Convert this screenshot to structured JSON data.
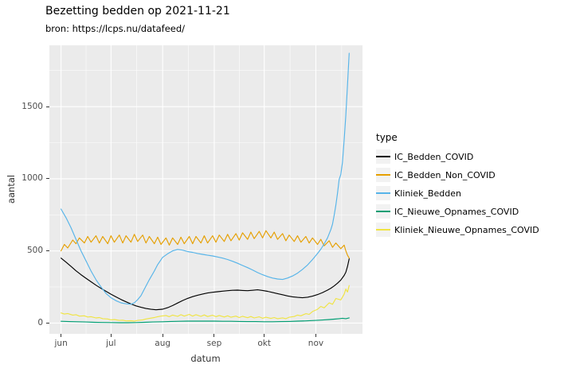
{
  "chart_data": {
    "type": "line",
    "title": "Bezetting bedden op 2021-11-21",
    "subtitle": "bron: https://lcps.nu/datafeed/",
    "xlabel": "datum",
    "ylabel": "aantal",
    "legend_title": "type",
    "legend_position": "right",
    "grid": true,
    "panel_background": "#EBEBEB",
    "grid_color": "#FFFFFF",
    "x_unit": "days-since-2021-06-01",
    "x_domain": [
      -7,
      181
    ],
    "y_domain": [
      -75,
      1925
    ],
    "x_tick_positions": [
      0,
      30,
      61,
      92,
      122,
      153
    ],
    "x_tick_labels": [
      "jun",
      "jul",
      "aug",
      "sep",
      "okt",
      "nov"
    ],
    "x_minor_breaks": [
      15,
      45.5,
      76.5,
      107,
      137.5,
      168.5
    ],
    "y_ticks": [
      0,
      500,
      1000,
      1500
    ],
    "y_tick_labels": [
      "0",
      "500",
      "1000",
      "1500"
    ],
    "y_minor_breaks": [
      250,
      750,
      1250,
      1750
    ],
    "series": [
      {
        "name": "IC_Bedden_COVID",
        "color": "#000000",
        "x": [
          0,
          3,
          6,
          9,
          12,
          15,
          18,
          21,
          24,
          27,
          30,
          33,
          36,
          39,
          42,
          45,
          48,
          51,
          54,
          57,
          61,
          64,
          67,
          70,
          73,
          76,
          79,
          82,
          85,
          88,
          91,
          94,
          97,
          100,
          103,
          106,
          109,
          112,
          115,
          118,
          121,
          124,
          127,
          130,
          133,
          136,
          139,
          142,
          145,
          148,
          151,
          154,
          157,
          160,
          162,
          164,
          166,
          168,
          170,
          171,
          172,
          173
        ],
        "values": [
          450,
          422,
          392,
          362,
          335,
          310,
          286,
          262,
          240,
          220,
          200,
          181,
          163,
          147,
          132,
          119,
          109,
          101,
          95,
          92,
          96,
          106,
          121,
          139,
          156,
          171,
          183,
          193,
          201,
          208,
          213,
          217,
          221,
          224,
          227,
          228,
          226,
          224,
          227,
          230,
          226,
          220,
          212,
          204,
          196,
          188,
          182,
          178,
          175,
          179,
          186,
          197,
          211,
          228,
          241,
          257,
          276,
          298,
          330,
          352,
          392,
          445
        ]
      },
      {
        "name": "IC_Bedden_Non_COVID",
        "color": "#E69F00",
        "x": [
          0,
          2,
          4,
          7,
          9,
          11,
          14,
          16,
          18,
          21,
          23,
          25,
          28,
          30,
          32,
          35,
          37,
          39,
          42,
          44,
          46,
          49,
          51,
          53,
          56,
          58,
          60,
          63,
          65,
          67,
          70,
          72,
          74,
          77,
          79,
          81,
          84,
          86,
          88,
          91,
          93,
          95,
          98,
          100,
          102,
          105,
          107,
          109,
          112,
          114,
          116,
          119,
          121,
          123,
          126,
          128,
          130,
          133,
          135,
          137,
          140,
          142,
          144,
          147,
          149,
          151,
          154,
          156,
          158,
          161,
          163,
          165,
          168,
          170,
          171,
          172,
          173
        ],
        "values": [
          500,
          545,
          520,
          575,
          550,
          590,
          555,
          600,
          560,
          605,
          555,
          600,
          550,
          605,
          560,
          610,
          555,
          605,
          560,
          615,
          565,
          610,
          555,
          600,
          550,
          595,
          545,
          590,
          540,
          590,
          545,
          595,
          550,
          600,
          550,
          600,
          555,
          605,
          555,
          605,
          560,
          610,
          565,
          615,
          570,
          620,
          575,
          625,
          580,
          630,
          585,
          635,
          590,
          640,
          590,
          630,
          580,
          620,
          570,
          610,
          565,
          605,
          560,
          600,
          555,
          590,
          545,
          580,
          535,
          570,
          525,
          555,
          515,
          540,
          500,
          470,
          450
        ]
      },
      {
        "name": "Kliniek_Bedden",
        "color": "#56B4E9",
        "x": [
          0,
          3,
          6,
          9,
          12,
          15,
          18,
          21,
          24,
          27,
          30,
          33,
          36,
          39,
          42,
          44,
          46,
          48,
          50,
          53,
          56,
          58,
          61,
          64,
          67,
          70,
          73,
          76,
          79,
          82,
          85,
          88,
          91,
          94,
          97,
          100,
          103,
          106,
          109,
          112,
          115,
          118,
          121,
          124,
          127,
          130,
          133,
          136,
          139,
          142,
          145,
          148,
          151,
          154,
          156,
          158,
          160,
          162,
          163,
          164,
          165,
          166,
          167,
          168,
          169,
          170,
          171,
          172,
          173
        ],
        "values": [
          790,
          730,
          660,
          580,
          500,
          430,
          360,
          300,
          250,
          205,
          175,
          155,
          140,
          133,
          130,
          140,
          162,
          190,
          235,
          300,
          360,
          405,
          455,
          480,
          500,
          510,
          505,
          495,
          490,
          482,
          476,
          470,
          465,
          458,
          450,
          440,
          428,
          414,
          399,
          384,
          368,
          350,
          335,
          322,
          312,
          305,
          302,
          312,
          326,
          346,
          372,
          402,
          440,
          482,
          512,
          548,
          590,
          648,
          686,
          748,
          818,
          898,
          995,
          1030,
          1115,
          1270,
          1440,
          1650,
          1870
        ]
      },
      {
        "name": "IC_Nieuwe_Opnames_COVID",
        "color": "#009E73",
        "x": [
          0,
          5,
          10,
          15,
          20,
          25,
          30,
          35,
          40,
          45,
          50,
          55,
          61,
          66,
          71,
          76,
          81,
          86,
          92,
          97,
          102,
          107,
          112,
          117,
          122,
          127,
          132,
          137,
          142,
          147,
          153,
          157,
          161,
          164,
          167,
          169,
          171,
          173
        ],
        "values": [
          12,
          10,
          9,
          7,
          5,
          4,
          3,
          2,
          2,
          3,
          5,
          7,
          9,
          11,
          12,
          13,
          13,
          13,
          13,
          12,
          12,
          11,
          10,
          10,
          9,
          9,
          10,
          11,
          13,
          15,
          18,
          21,
          24,
          27,
          30,
          33,
          30,
          36
        ]
      },
      {
        "name": "Kliniek_Nieuwe_Opnames_COVID",
        "color": "#F0E442",
        "x": [
          0,
          2,
          4,
          7,
          9,
          11,
          14,
          16,
          18,
          21,
          23,
          25,
          28,
          30,
          32,
          35,
          37,
          39,
          42,
          44,
          46,
          49,
          51,
          53,
          56,
          58,
          60,
          63,
          65,
          67,
          70,
          72,
          74,
          77,
          79,
          81,
          84,
          86,
          88,
          91,
          93,
          95,
          98,
          100,
          102,
          105,
          107,
          109,
          112,
          114,
          116,
          119,
          121,
          123,
          126,
          128,
          130,
          133,
          135,
          137,
          140,
          142,
          144,
          147,
          149,
          151,
          154,
          156,
          158,
          161,
          163,
          165,
          168,
          170,
          171,
          172,
          173
        ],
        "values": [
          70,
          62,
          66,
          55,
          58,
          48,
          50,
          42,
          44,
          35,
          38,
          30,
          28,
          22,
          24,
          18,
          20,
          15,
          16,
          13,
          18,
          22,
          28,
          32,
          38,
          44,
          48,
          52,
          44,
          55,
          46,
          58,
          48,
          60,
          48,
          58,
          46,
          56,
          45,
          54,
          44,
          52,
          42,
          50,
          40,
          48,
          38,
          47,
          37,
          45,
          35,
          43,
          33,
          40,
          32,
          38,
          30,
          36,
          30,
          40,
          45,
          55,
          50,
          65,
          60,
          80,
          95,
          115,
          105,
          140,
          130,
          170,
          160,
          200,
          235,
          215,
          260
        ]
      }
    ]
  }
}
